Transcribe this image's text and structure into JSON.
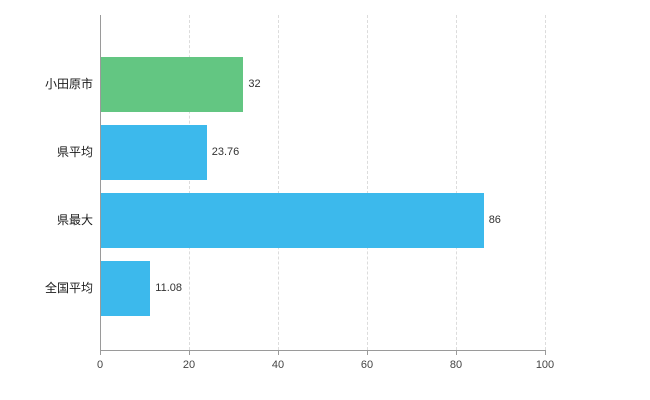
{
  "chart_data": {
    "type": "bar",
    "orientation": "horizontal",
    "title": "",
    "xlabel": "",
    "ylabel": "",
    "categories": [
      "小田原市",
      "県平均",
      "県最大",
      "全国平均"
    ],
    "values": [
      32,
      23.76,
      86,
      11.08
    ],
    "value_labels": [
      "32",
      "23.76",
      "86",
      "11.08"
    ],
    "bar_colors": [
      "#63c682",
      "#3cb9ec",
      "#3cb9ec",
      "#3cb9ec"
    ],
    "xlim": [
      0,
      100
    ],
    "x_ticks": [
      0,
      20,
      40,
      60,
      80,
      100
    ],
    "grid": "vertical-dashed",
    "legend": "none"
  },
  "style": {
    "grid_color": "#dcdcdc",
    "axis_color": "#9a9a9a",
    "category_label_color": "#1a1a1a",
    "value_label_color": "#333333",
    "tick_label_color": "#444444",
    "background": "#ffffff"
  }
}
